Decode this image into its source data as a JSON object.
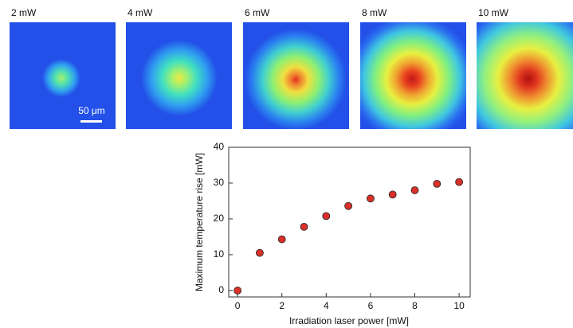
{
  "panels": [
    {
      "label": "2 mW"
    },
    {
      "label": "4 mW"
    },
    {
      "label": "6 mW"
    },
    {
      "label": "8 mW"
    },
    {
      "label": "10 mW"
    }
  ],
  "scale_bar": "50 μm",
  "chart_data": {
    "type": "scatter",
    "x_label": "Irradiation laser power [mW]",
    "y_label": "Maximum temperature rise [mW]",
    "x": [
      0,
      1,
      2,
      3,
      4,
      5,
      6,
      7,
      8,
      9,
      10
    ],
    "values": [
      0,
      10.5,
      14.3,
      17.8,
      20.8,
      23.6,
      25.7,
      26.8,
      28.0,
      29.8,
      30.3
    ],
    "color": "#d9302a",
    "xlim": [
      -0.4,
      10.5
    ],
    "ylim": [
      -1.8,
      40
    ],
    "xticks": [
      0,
      2,
      4,
      6,
      8,
      10
    ],
    "yticks": [
      0,
      10,
      20,
      30,
      40
    ]
  }
}
